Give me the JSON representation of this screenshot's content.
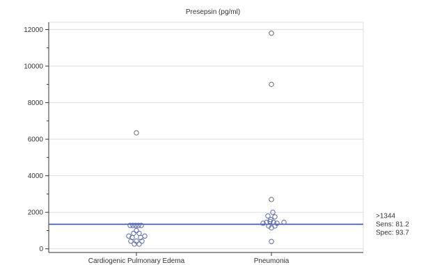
{
  "chart_data": {
    "type": "scatter",
    "title": "Presepsin (pg/ml)",
    "xlabel": "",
    "ylabel": "",
    "ylim": [
      -200,
      12400
    ],
    "yticks": [
      0,
      2000,
      4000,
      6000,
      8000,
      10000,
      12000
    ],
    "ytick_labels": [
      "0",
      "2000",
      "4000",
      "6000",
      "8000",
      "10000",
      "12000"
    ],
    "categories": [
      "Cardiogenic Pulmonary Edema",
      "Pneumonia"
    ],
    "grid": true,
    "series": [
      {
        "category": "Cardiogenic Pulmonary Edema",
        "points": [
          {
            "dx": 0.0,
            "y": 6350
          },
          {
            "dx": -0.09,
            "y": 1280
          },
          {
            "dx": -0.05,
            "y": 1280
          },
          {
            "dx": -0.01,
            "y": 1280
          },
          {
            "dx": 0.03,
            "y": 1280
          },
          {
            "dx": 0.07,
            "y": 1280
          },
          {
            "dx": 0.0,
            "y": 1000
          },
          {
            "dx": -0.04,
            "y": 850
          },
          {
            "dx": 0.04,
            "y": 850
          },
          {
            "dx": -0.11,
            "y": 700
          },
          {
            "dx": -0.06,
            "y": 620
          },
          {
            "dx": 0.06,
            "y": 620
          },
          {
            "dx": 0.12,
            "y": 700
          },
          {
            "dx": -0.08,
            "y": 420
          },
          {
            "dx": 0.0,
            "y": 420
          },
          {
            "dx": 0.08,
            "y": 420
          },
          {
            "dx": -0.03,
            "y": 260
          },
          {
            "dx": 0.04,
            "y": 260
          }
        ]
      },
      {
        "category": "Pneumonia",
        "points": [
          {
            "dx": 0.0,
            "y": 11800
          },
          {
            "dx": 0.0,
            "y": 9000
          },
          {
            "dx": 0.0,
            "y": 2700
          },
          {
            "dx": 0.02,
            "y": 2000
          },
          {
            "dx": -0.05,
            "y": 1800
          },
          {
            "dx": 0.05,
            "y": 1750
          },
          {
            "dx": -0.01,
            "y": 1600
          },
          {
            "dx": -0.12,
            "y": 1400
          },
          {
            "dx": -0.07,
            "y": 1450
          },
          {
            "dx": -0.02,
            "y": 1500
          },
          {
            "dx": 0.03,
            "y": 1450
          },
          {
            "dx": 0.08,
            "y": 1400
          },
          {
            "dx": 0.18,
            "y": 1450
          },
          {
            "dx": -0.04,
            "y": 1250
          },
          {
            "dx": 0.05,
            "y": 1250
          },
          {
            "dx": 0.0,
            "y": 1150
          },
          {
            "dx": 0.0,
            "y": 400
          }
        ]
      }
    ],
    "cutoff": {
      "value": 1344,
      "label_lines": [
        ">1344",
        "Sens: 81.2",
        "Spec: 93.7"
      ]
    },
    "colors": {
      "points": "#5b6aa8",
      "outlier_points": "#666666",
      "cutoff_line": "#3f51b5",
      "axis": "#333333",
      "grid": "#dddddd"
    }
  }
}
